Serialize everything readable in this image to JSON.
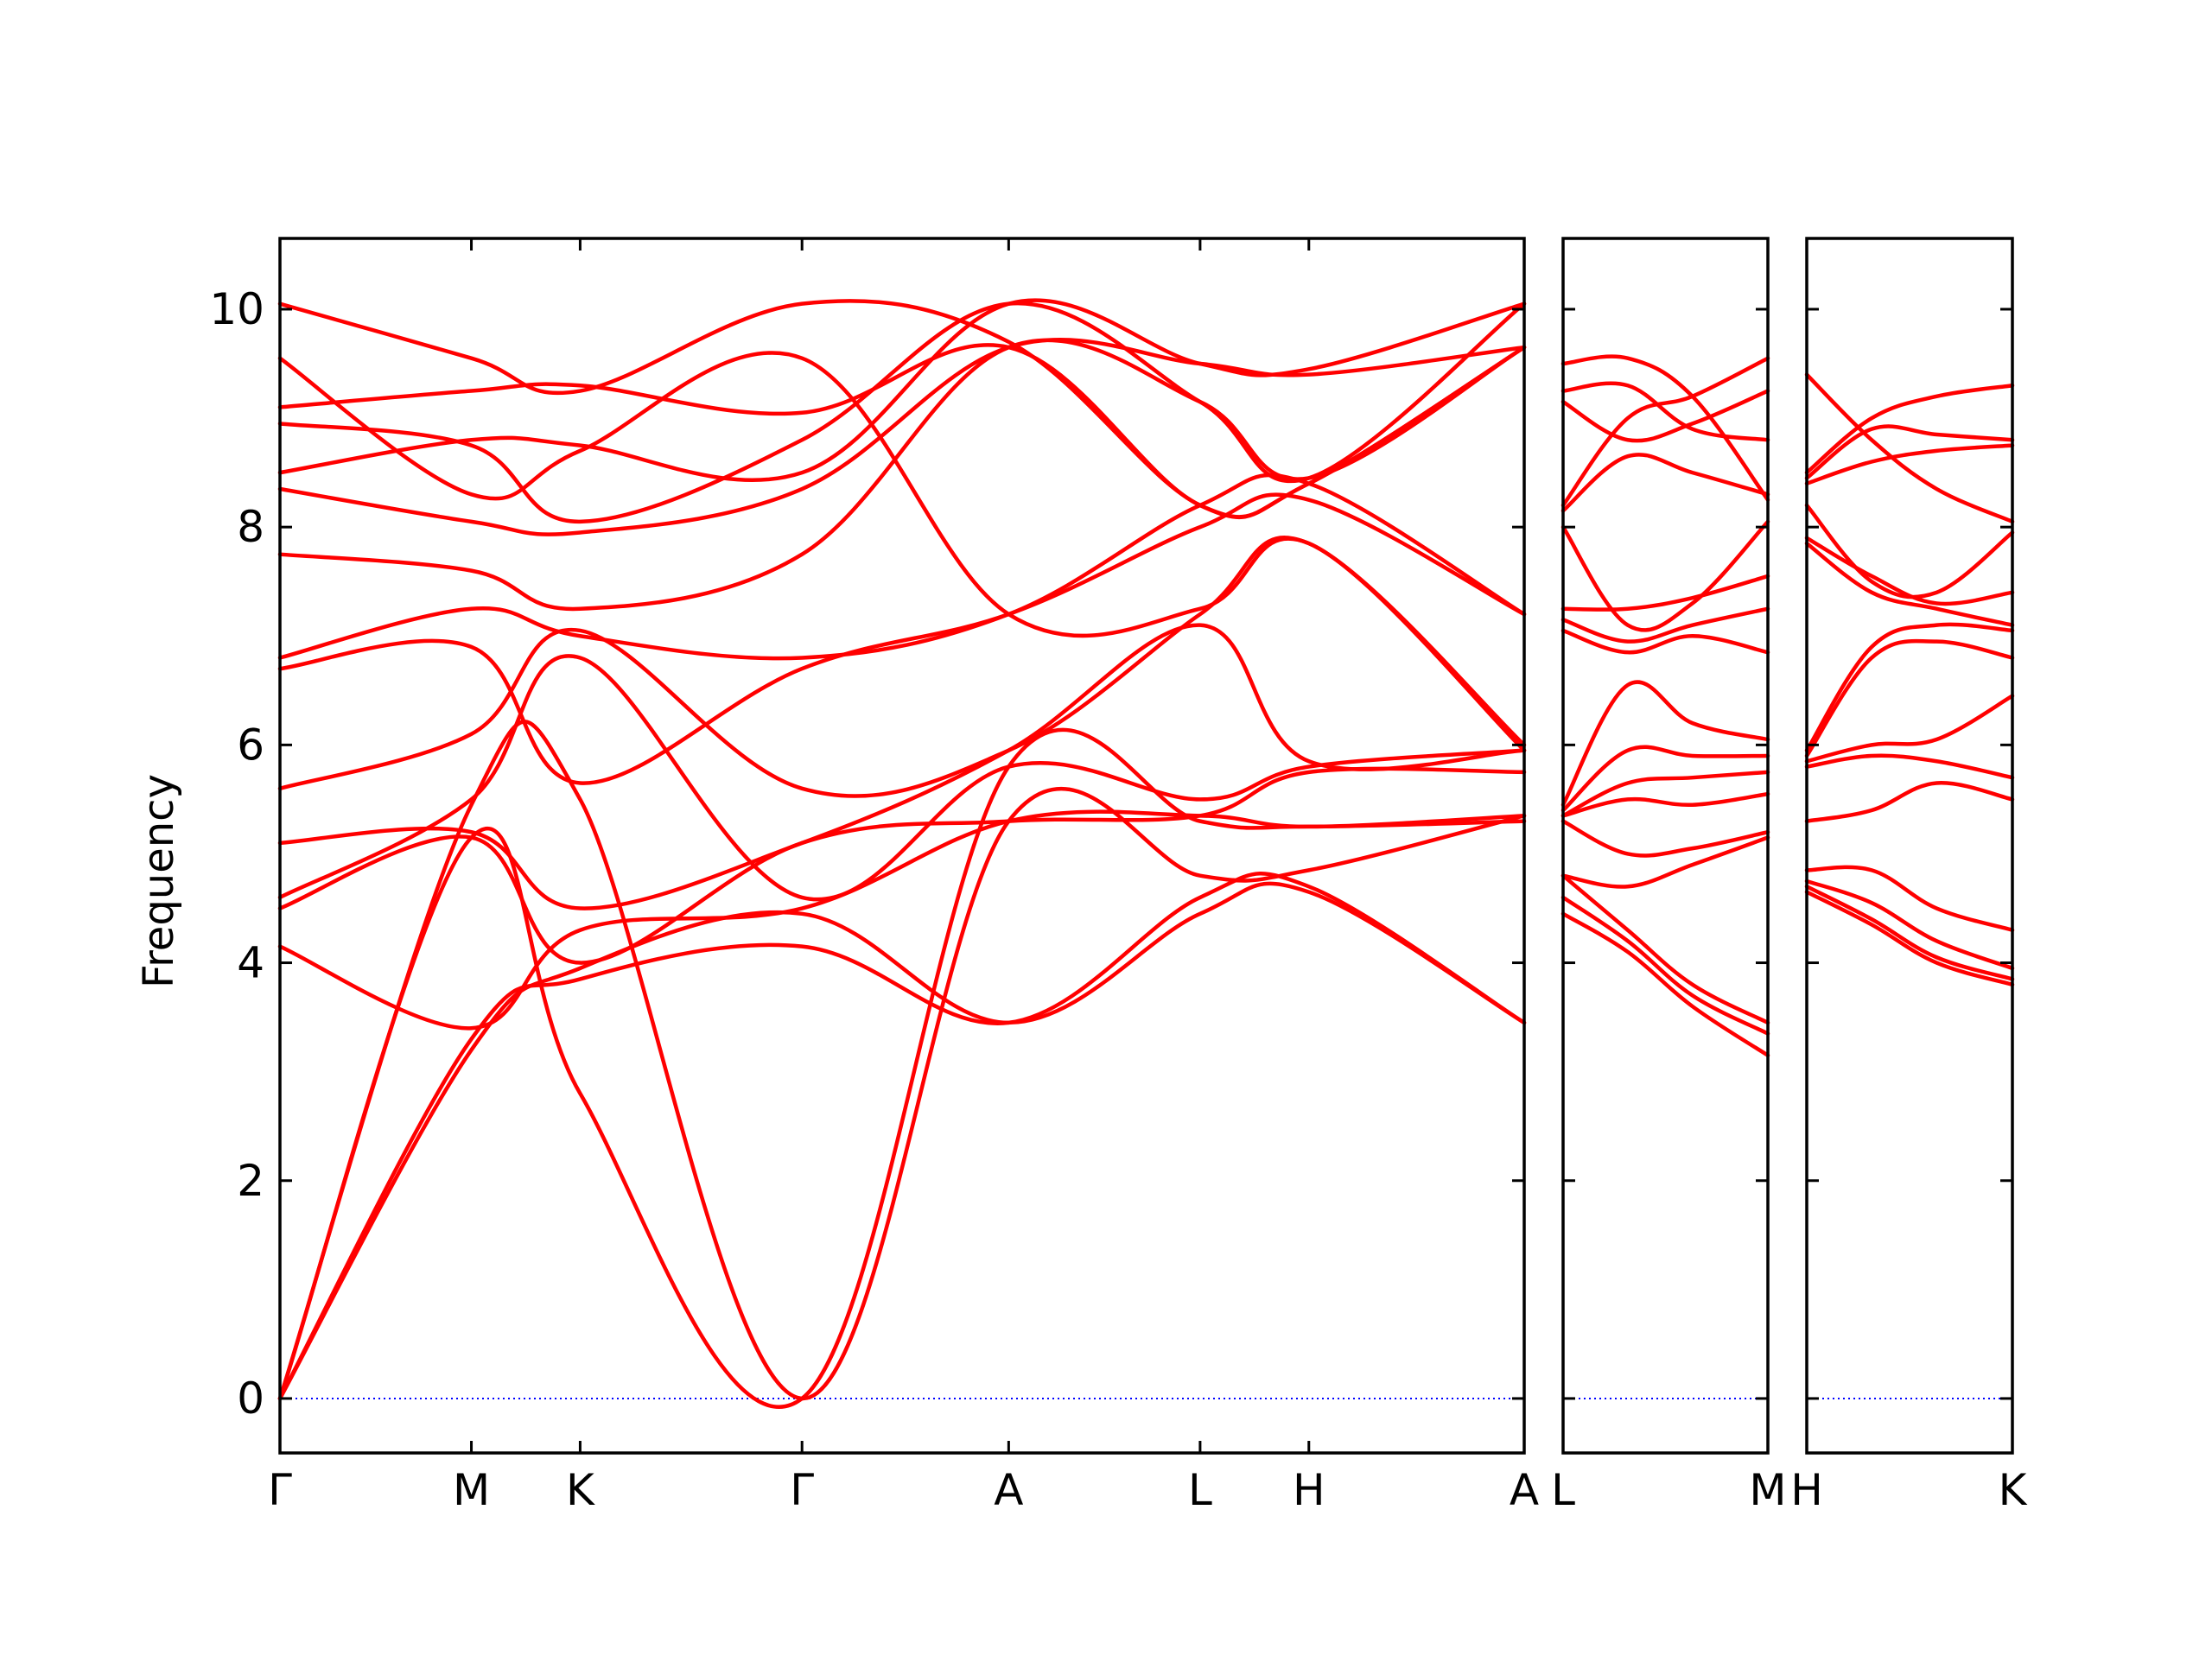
{
  "chart_data": {
    "type": "line",
    "title": "",
    "ylabel": "Frequency",
    "xlabel": "",
    "ylim": [
      -0.5,
      10.65
    ],
    "yticks": [
      0,
      2,
      4,
      6,
      8,
      10
    ],
    "ytick_labels": [
      "0",
      "2",
      "4",
      "6",
      "8",
      "10"
    ],
    "zero_line": {
      "value": 0,
      "color": "#0000ff",
      "style": "dotted"
    },
    "band_color": "#ff0000",
    "frame_color": "#000000",
    "panels": [
      {
        "x_range": [
          0,
          5.72
        ],
        "ticks": [
          {
            "x": 0,
            "label": "Γ"
          },
          {
            "x": 0.88,
            "label": "M"
          },
          {
            "x": 1.38,
            "label": "K"
          },
          {
            "x": 2.4,
            "label": "Γ"
          },
          {
            "x": 3.35,
            "label": "A"
          },
          {
            "x": 4.23,
            "label": "L"
          },
          {
            "x": 4.73,
            "label": "H"
          },
          {
            "x": 5.72,
            "label": "A"
          }
        ],
        "bands": [
          {
            "x": [
              0,
              0.88,
              1.38,
              2.4,
              3.35,
              4.23,
              4.73,
              5.72
            ],
            "y": [
              0,
              3.2,
              3.95,
              4.45,
              3.45,
              4.45,
              4.65,
              3.45
            ]
          },
          {
            "x": [
              0,
              0.88,
              1.38,
              2.4,
              3.35,
              4.23,
              4.73,
              5.72
            ],
            "y": [
              0,
              3.3,
              3.85,
              4.15,
              3.45,
              4.6,
              4.7,
              3.45
            ]
          },
          {
            "x": [
              0,
              0.88,
              1.38,
              2.4,
              3.35,
              4.23,
              4.73,
              5.72
            ],
            "y": [
              0,
              5.15,
              2.8,
              0,
              5.8,
              5.3,
              5.25,
              5.3
            ]
          },
          {
            "x": [
              0,
              0.88,
              1.38,
              2.4,
              3.35,
              4.23,
              4.73,
              5.72
            ],
            "y": [
              0,
              5.45,
              5.5,
              0,
              5.3,
              4.8,
              4.85,
              5.35
            ]
          },
          {
            "x": [
              0,
              0.88,
              1.38,
              2.4,
              3.35,
              4.23,
              4.73,
              5.72
            ],
            "y": [
              4.15,
              3.4,
              4.3,
              4.5,
              5.3,
              5.35,
              5.25,
              5.35
            ]
          },
          {
            "x": [
              0,
              0.88,
              1.38,
              2.4,
              3.35,
              4.23,
              4.73,
              5.72
            ],
            "y": [
              4.5,
              5.15,
              4.0,
              5.1,
              5.3,
              5.35,
              5.75,
              5.75
            ]
          },
          {
            "x": [
              0,
              0.88,
              1.38,
              2.4,
              3.35,
              4.23,
              4.73,
              5.72
            ],
            "y": [
              4.6,
              5.5,
              6.8,
              4.6,
              5.8,
              5.5,
              5.8,
              5.95
            ]
          },
          {
            "x": [
              0,
              0.88,
              1.38,
              2.4,
              3.35,
              4.23,
              4.73,
              5.72
            ],
            "y": [
              5.1,
              5.2,
              4.5,
              5.1,
              5.95,
              7.1,
              5.85,
              5.95
            ]
          },
          {
            "x": [
              0,
              0.88,
              1.38,
              2.4,
              3.35,
              4.23,
              4.73,
              5.72
            ],
            "y": [
              5.6,
              6.1,
              7.05,
              5.6,
              5.95,
              7.2,
              7.85,
              5.95
            ]
          },
          {
            "x": [
              0,
              0.88,
              1.38,
              2.4,
              3.35,
              4.23,
              4.73,
              5.72
            ],
            "y": [
              6.7,
              6.9,
              5.65,
              6.7,
              7.2,
              8.0,
              8.25,
              7.2
            ]
          },
          {
            "x": [
              0,
              0.88,
              1.38,
              2.4,
              3.35,
              4.23,
              4.73,
              5.72
            ],
            "y": [
              6.8,
              7.25,
              7.0,
              6.8,
              7.2,
              8.2,
              8.4,
              7.2
            ]
          },
          {
            "x": [
              0,
              0.88,
              1.38,
              2.4,
              3.35,
              4.23,
              4.73,
              5.72
            ],
            "y": [
              7.75,
              7.6,
              7.25,
              7.75,
              9.65,
              9.15,
              8.45,
              9.65
            ]
          },
          {
            "x": [
              0,
              0.88,
              1.38,
              2.4,
              3.35,
              4.23,
              4.73,
              5.72
            ],
            "y": [
              8.35,
              8.05,
              7.95,
              8.35,
              9.65,
              9.5,
              9.4,
              9.65
            ]
          },
          {
            "x": [
              0,
              0.88,
              1.38,
              2.4,
              3.35,
              4.23,
              4.73,
              5.72
            ],
            "y": [
              8.5,
              8.8,
              8.75,
              8.5,
              10.05,
              9.5,
              9.45,
              10.05
            ]
          },
          {
            "x": [
              0,
              0.88,
              1.38,
              2.4,
              3.35,
              4.23,
              4.73,
              5.72
            ],
            "y": [
              8.95,
              8.75,
              8.05,
              8.8,
              10.05,
              9.15,
              8.45,
              10.05
            ]
          },
          {
            "x": [
              0,
              0.88,
              1.38,
              2.4,
              3.35,
              4.23,
              4.73,
              5.72
            ],
            "y": [
              9.1,
              9.25,
              9.3,
              9.05,
              9.65,
              8.2,
              8.4,
              9.65
            ]
          },
          {
            "x": [
              0,
              0.88,
              1.38,
              2.4,
              3.35,
              4.23,
              4.73,
              5.72
            ],
            "y": [
              9.55,
              8.3,
              8.7,
              9.55,
              7.2,
              7.25,
              7.85,
              6.0
            ]
          },
          {
            "x": [
              0,
              0.88,
              1.38,
              2.4,
              3.35,
              4.23,
              4.73,
              5.72
            ],
            "y": [
              10.05,
              9.55,
              9.25,
              10.05,
              9.7,
              8.2,
              8.4,
              9.65
            ]
          }
        ]
      },
      {
        "x_range": [
          0,
          0.95
        ],
        "ticks": [
          {
            "x": 0,
            "label": "L"
          },
          {
            "x": 0.95,
            "label": "M"
          }
        ],
        "bands": [
          {
            "x": [
              0,
              0.3,
              0.6,
              0.95
            ],
            "y": [
              4.45,
              4.1,
              3.6,
              3.15
            ]
          },
          {
            "x": [
              0,
              0.3,
              0.6,
              0.95
            ],
            "y": [
              4.6,
              4.2,
              3.7,
              3.35
            ]
          },
          {
            "x": [
              0,
              0.3,
              0.6,
              0.95
            ],
            "y": [
              4.8,
              4.3,
              3.8,
              3.45
            ]
          },
          {
            "x": [
              0,
              0.3,
              0.6,
              0.95
            ],
            "y": [
              4.8,
              4.7,
              4.9,
              5.15
            ]
          },
          {
            "x": [
              0,
              0.3,
              0.6,
              0.95
            ],
            "y": [
              5.3,
              5.0,
              5.05,
              5.2
            ]
          },
          {
            "x": [
              0,
              0.3,
              0.6,
              0.95
            ],
            "y": [
              5.35,
              5.5,
              5.45,
              5.55
            ]
          },
          {
            "x": [
              0,
              0.3,
              0.6,
              0.95
            ],
            "y": [
              5.35,
              5.65,
              5.7,
              5.75
            ]
          },
          {
            "x": [
              0,
              0.3,
              0.6,
              0.95
            ],
            "y": [
              5.4,
              5.95,
              5.9,
              5.9
            ]
          },
          {
            "x": [
              0,
              0.3,
              0.6,
              0.95
            ],
            "y": [
              5.45,
              6.55,
              6.2,
              6.05
            ]
          },
          {
            "x": [
              0,
              0.3,
              0.6,
              0.95
            ],
            "y": [
              7.05,
              6.85,
              7.0,
              6.85
            ]
          },
          {
            "x": [
              0,
              0.3,
              0.6,
              0.95
            ],
            "y": [
              7.15,
              6.95,
              7.1,
              7.25
            ]
          },
          {
            "x": [
              0,
              0.3,
              0.6,
              0.95
            ],
            "y": [
              7.25,
              7.25,
              7.35,
              7.55
            ]
          },
          {
            "x": [
              0,
              0.3,
              0.6,
              0.95
            ],
            "y": [
              8.0,
              7.1,
              7.3,
              8.05
            ]
          },
          {
            "x": [
              0,
              0.3,
              0.6,
              0.95
            ],
            "y": [
              8.15,
              8.65,
              8.5,
              8.3
            ]
          },
          {
            "x": [
              0,
              0.3,
              0.6,
              0.95
            ],
            "y": [
              8.2,
              9.0,
              9.2,
              9.55
            ]
          },
          {
            "x": [
              0,
              0.3,
              0.6,
              0.95
            ],
            "y": [
              9.15,
              8.8,
              8.95,
              9.25
            ]
          },
          {
            "x": [
              0,
              0.3,
              0.6,
              0.95
            ],
            "y": [
              9.25,
              9.3,
              8.9,
              8.8
            ]
          },
          {
            "x": [
              0,
              0.3,
              0.6,
              0.95
            ],
            "y": [
              9.5,
              9.55,
              9.2,
              8.25
            ]
          }
        ]
      },
      {
        "x_range": [
          0,
          0.95
        ],
        "ticks": [
          {
            "x": 0,
            "label": "H"
          },
          {
            "x": 0.95,
            "label": "K"
          }
        ],
        "bands": [
          {
            "x": [
              0,
              0.3,
              0.6,
              0.95
            ],
            "y": [
              4.65,
              4.35,
              4.0,
              3.8
            ]
          },
          {
            "x": [
              0,
              0.3,
              0.6,
              0.95
            ],
            "y": [
              4.7,
              4.4,
              4.05,
              3.85
            ]
          },
          {
            "x": [
              0,
              0.3,
              0.6,
              0.95
            ],
            "y": [
              4.75,
              4.55,
              4.2,
              3.95
            ]
          },
          {
            "x": [
              0,
              0.3,
              0.6,
              0.95
            ],
            "y": [
              4.85,
              4.85,
              4.5,
              4.3
            ]
          },
          {
            "x": [
              0,
              0.3,
              0.6,
              0.95
            ],
            "y": [
              5.3,
              5.4,
              5.65,
              5.5
            ]
          },
          {
            "x": [
              0,
              0.3,
              0.6,
              0.95
            ],
            "y": [
              5.8,
              5.9,
              5.85,
              5.7
            ]
          },
          {
            "x": [
              0,
              0.3,
              0.6,
              0.95
            ],
            "y": [
              5.85,
              6.0,
              6.05,
              6.45
            ]
          },
          {
            "x": [
              0,
              0.3,
              0.6,
              0.95
            ],
            "y": [
              5.9,
              6.8,
              6.95,
              6.8
            ]
          },
          {
            "x": [
              0,
              0.3,
              0.6,
              0.95
            ],
            "y": [
              5.95,
              6.9,
              7.1,
              7.05
            ]
          },
          {
            "x": [
              0,
              0.3,
              0.6,
              0.95
            ],
            "y": [
              7.85,
              7.4,
              7.25,
              7.1
            ]
          },
          {
            "x": [
              0,
              0.3,
              0.6,
              0.95
            ],
            "y": [
              7.9,
              7.55,
              7.3,
              7.4
            ]
          },
          {
            "x": [
              0,
              0.3,
              0.6,
              0.95
            ],
            "y": [
              8.2,
              7.5,
              7.4,
              7.95
            ]
          },
          {
            "x": [
              0,
              0.3,
              0.6,
              0.95
            ],
            "y": [
              8.4,
              8.6,
              8.7,
              8.75
            ]
          },
          {
            "x": [
              0,
              0.3,
              0.6,
              0.95
            ],
            "y": [
              8.45,
              8.9,
              8.85,
              8.8
            ]
          },
          {
            "x": [
              0,
              0.3,
              0.6,
              0.95
            ],
            "y": [
              8.5,
              9.0,
              9.2,
              9.3
            ]
          },
          {
            "x": [
              0,
              0.3,
              0.6,
              0.95
            ],
            "y": [
              9.4,
              8.8,
              8.35,
              8.05
            ]
          }
        ]
      }
    ]
  }
}
